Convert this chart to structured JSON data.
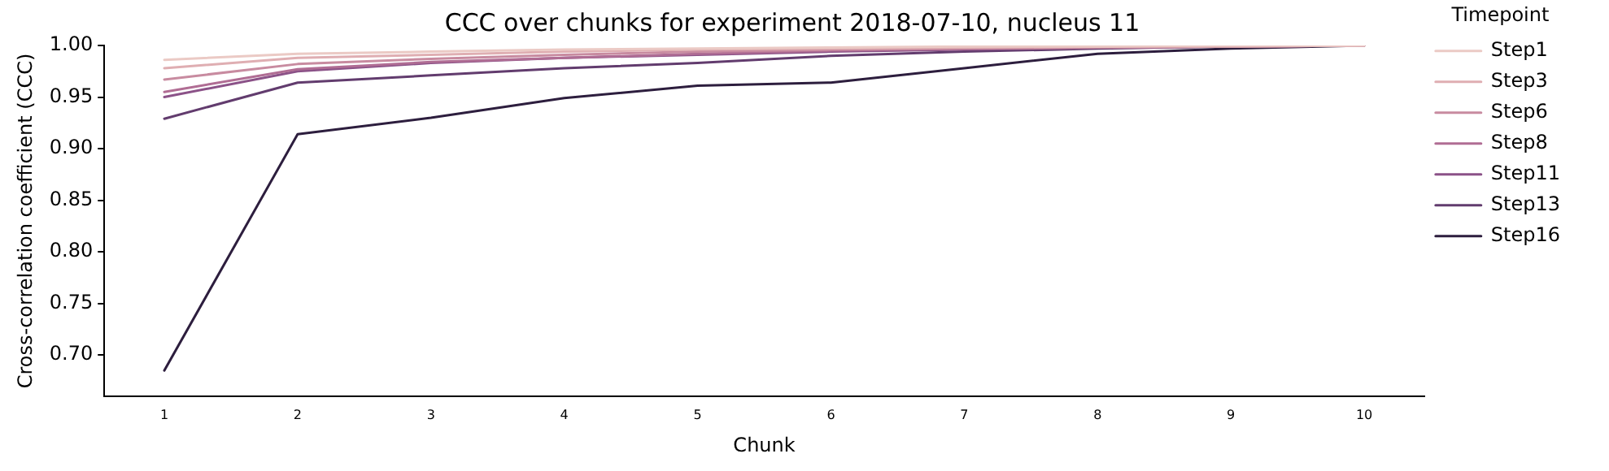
{
  "chart_data": {
    "type": "line",
    "title": "CCC over chunks for experiment 2018-07-10, nucleus 11",
    "xlabel": "Chunk",
    "ylabel": "Cross-correlation coefficient (CCC)",
    "legend_title": "Timepoint",
    "legend": "right",
    "grid": false,
    "marker": "none",
    "line_style": "solid",
    "x": [
      1,
      2,
      3,
      4,
      5,
      6,
      7,
      8,
      9,
      10
    ],
    "xlim": [
      0.55,
      10.45
    ],
    "xticks": [
      1,
      2,
      3,
      4,
      5,
      6,
      7,
      8,
      9,
      10
    ],
    "ylim": [
      0.66,
      1.0
    ],
    "yticks": [
      {
        "value": 0.7,
        "label": "0.70"
      },
      0.75,
      {
        "value": 0.8,
        "label": "0.80"
      },
      0.85,
      {
        "value": 0.9,
        "label": "0.90"
      },
      0.95,
      {
        "value": 1.0,
        "label": "1.00"
      }
    ],
    "series": [
      {
        "name": "Step1",
        "color": "#ebcac5",
        "values": [
          0.986,
          0.992,
          0.994,
          0.996,
          0.997,
          0.998,
          0.999,
          0.999,
          1.0,
          1.0
        ]
      },
      {
        "name": "Step3",
        "color": "#dfaeb2",
        "values": [
          0.978,
          0.988,
          0.991,
          0.994,
          0.996,
          0.997,
          0.998,
          0.999,
          0.999,
          1.0
        ]
      },
      {
        "name": "Step6",
        "color": "#c88ba0",
        "values": [
          0.967,
          0.982,
          0.987,
          0.991,
          0.994,
          0.996,
          0.997,
          0.998,
          0.999,
          1.0
        ]
      },
      {
        "name": "Step8",
        "color": "#b06d94",
        "values": [
          0.955,
          0.977,
          0.984,
          0.988,
          0.992,
          0.995,
          0.997,
          0.998,
          0.999,
          1.0
        ]
      },
      {
        "name": "Step11",
        "color": "#8b5288",
        "values": [
          0.95,
          0.975,
          0.983,
          0.988,
          0.991,
          0.994,
          0.996,
          0.998,
          0.999,
          1.0
        ]
      },
      {
        "name": "Step13",
        "color": "#623c6e",
        "values": [
          0.929,
          0.964,
          0.971,
          0.978,
          0.983,
          0.99,
          0.994,
          0.997,
          0.999,
          1.0
        ]
      },
      {
        "name": "Step16",
        "color": "#2d1e3e",
        "values": [
          0.685,
          0.914,
          0.93,
          0.949,
          0.961,
          0.964,
          0.978,
          0.992,
          0.997,
          1.0
        ]
      }
    ]
  }
}
